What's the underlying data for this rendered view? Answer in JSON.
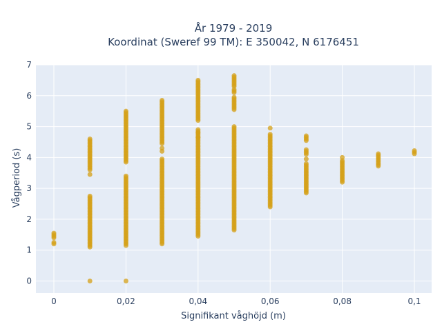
{
  "chart_data": {
    "type": "scatter",
    "title": "År 1979 - 2019",
    "subtitle": "Koordinat (Sweref 99 TM): E 350042, N 6176451",
    "xlabel": "Signifikant våghöjd (m)",
    "ylabel": "Vågperiod (s)",
    "xlim": [
      -0.005,
      0.105
    ],
    "ylim": [
      -0.35,
      7.0
    ],
    "x_ticks": [
      0,
      0.02,
      0.04,
      0.06,
      0.08,
      0.1
    ],
    "x_tick_labels": [
      "0",
      "0,02",
      "0,04",
      "0,06",
      "0,08",
      "0,1"
    ],
    "y_ticks": [
      0,
      1,
      2,
      3,
      4,
      5,
      6,
      7
    ],
    "y_tick_labels": [
      "0",
      "1",
      "2",
      "3",
      "4",
      "5",
      "6",
      "7"
    ],
    "grid": true,
    "marker_color": "#d4a017",
    "plot_background": "#e5ecf6",
    "columns": [
      {
        "x": 0.0,
        "segments": [
          [
            1.2,
            1.25
          ],
          [
            1.4,
            1.55
          ]
        ],
        "points": []
      },
      {
        "x": 0.01,
        "segments": [
          [
            1.1,
            2.75
          ],
          [
            3.6,
            4.6
          ]
        ],
        "points": [
          0.0,
          3.45
        ]
      },
      {
        "x": 0.02,
        "segments": [
          [
            1.15,
            3.4
          ],
          [
            3.85,
            5.5
          ]
        ],
        "points": [
          0.0
        ]
      },
      {
        "x": 0.03,
        "segments": [
          [
            1.2,
            3.95
          ],
          [
            4.45,
            5.85
          ]
        ],
        "points": [
          4.2,
          4.3
        ]
      },
      {
        "x": 0.04,
        "segments": [
          [
            1.45,
            4.9
          ],
          [
            5.2,
            6.5
          ]
        ],
        "points": [
          4.65,
          4.8
        ]
      },
      {
        "x": 0.05,
        "segments": [
          [
            1.65,
            5.0
          ],
          [
            5.55,
            5.95
          ],
          [
            6.1,
            6.2
          ],
          [
            6.3,
            6.65
          ]
        ],
        "points": []
      },
      {
        "x": 0.06,
        "segments": [
          [
            2.4,
            4.75
          ]
        ],
        "points": [
          4.95
        ]
      },
      {
        "x": 0.07,
        "segments": [
          [
            2.85,
            3.8
          ],
          [
            4.1,
            4.25
          ],
          [
            4.55,
            4.7
          ]
        ],
        "points": [
          3.95
        ]
      },
      {
        "x": 0.08,
        "segments": [
          [
            3.2,
            3.9
          ]
        ],
        "points": [
          4.0
        ]
      },
      {
        "x": 0.09,
        "segments": [
          [
            3.72,
            4.12
          ]
        ],
        "points": []
      },
      {
        "x": 0.1,
        "segments": [
          [
            4.12,
            4.22
          ]
        ],
        "points": []
      }
    ]
  }
}
